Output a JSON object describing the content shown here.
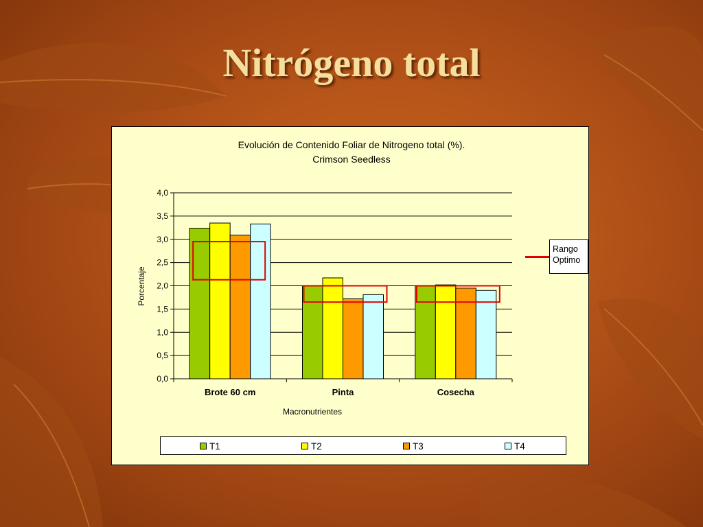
{
  "slide": {
    "title": "Nitrógeno total"
  },
  "chart_data": {
    "type": "bar",
    "title_line1": "Evolución de Contenido Foliar de Nitrogeno total (%).",
    "title_line2": "Crimson Seedless",
    "xlabel": "Macronutrientes",
    "ylabel": "Porcentaje",
    "ylim": [
      0,
      4
    ],
    "yticks": [
      "0,0",
      "0,5",
      "1,0",
      "1,5",
      "2,0",
      "2,5",
      "3,0",
      "3,5",
      "4,0"
    ],
    "categories": [
      "Brote 60 cm",
      "Pinta",
      "Cosecha"
    ],
    "series": [
      {
        "name": "T1",
        "color": "#99cc00",
        "values": [
          3.24,
          2.0,
          2.0
        ]
      },
      {
        "name": "T2",
        "color": "#ffff00",
        "values": [
          3.35,
          2.17,
          2.02
        ]
      },
      {
        "name": "T3",
        "color": "#ff9900",
        "values": [
          3.09,
          1.72,
          1.95
        ]
      },
      {
        "name": "T4",
        "color": "#ccffff",
        "values": [
          3.33,
          1.81,
          1.9
        ]
      }
    ],
    "optimal_range": {
      "label_line1": "Rango",
      "label_line2": "Optimo",
      "color": "#e00000",
      "ranges": [
        [
          2.13,
          2.95
        ],
        [
          1.65,
          2.0
        ],
        [
          1.65,
          2.0
        ]
      ]
    },
    "grid": true,
    "legend_position": "bottom"
  }
}
